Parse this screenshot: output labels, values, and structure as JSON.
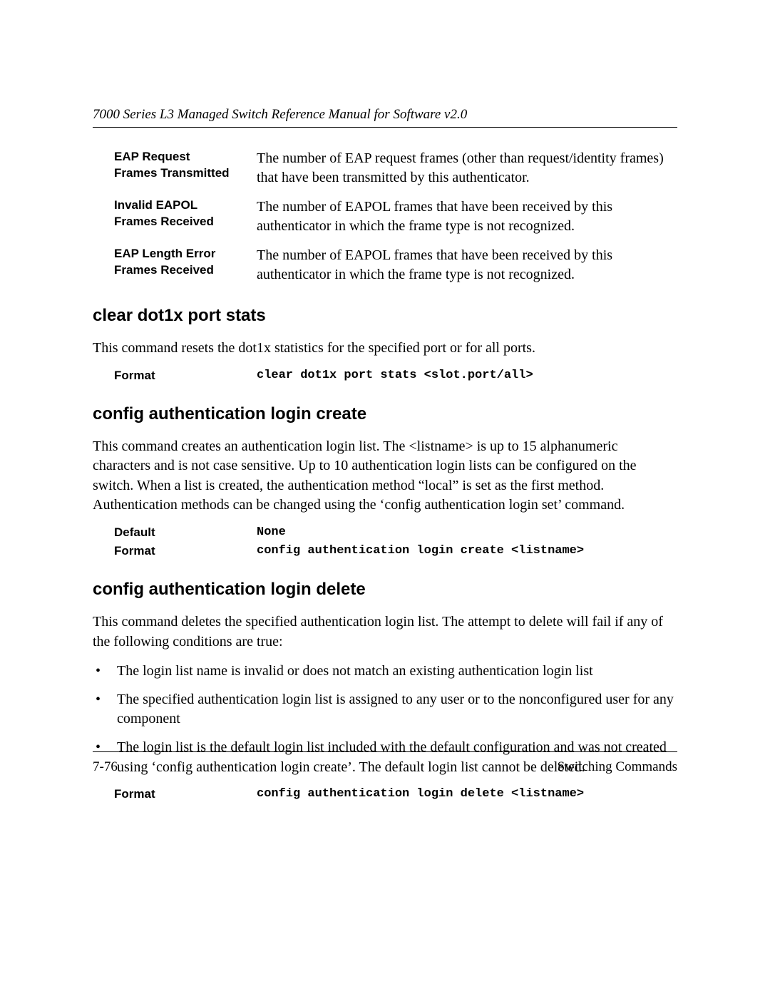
{
  "header": {
    "running_title": "7000 Series L3 Managed Switch Reference Manual for Software v2.0"
  },
  "definitions": [
    {
      "term_line1": "EAP Request",
      "term_line2": "Frames Transmitted",
      "desc": "The number of EAP request frames (other than request/identity frames) that have been transmitted by this authenticator."
    },
    {
      "term_line1": "Invalid EAPOL",
      "term_line2": "Frames Received",
      "desc": "The number of EAPOL frames that have been received by this authenticator in which the frame type is not recognized."
    },
    {
      "term_line1": "EAP Length Error",
      "term_line2": "Frames Received",
      "desc": "The number of EAPOL frames that have been received by this authenticator in which the frame type is not recognized."
    }
  ],
  "sections": {
    "clear_stats": {
      "title": "clear dot1x port stats",
      "body": "This command resets the dot1x statistics for the specified port or for all ports.",
      "format_label": "Format",
      "format_value": "clear dot1x port stats <slot.port/all>"
    },
    "login_create": {
      "title": "config authentication login create",
      "body": "This command creates an authentication login list. The <listname> is up to 15 alphanumeric characters and is not case sensitive. Up to 10 authentication login lists can be configured on the switch. When a list is created, the authentication method “local” is set as the first method. Authentication methods can be changed using the ‘config authentication login set’ command.",
      "default_label": "Default",
      "default_value": "None",
      "format_label": "Format",
      "format_value": "config authentication login create <listname>"
    },
    "login_delete": {
      "title": "config authentication login delete",
      "body": "This command deletes the specified authentication login list. The attempt to delete will fail if any of the following conditions are true:",
      "bullets": [
        "The login list name is invalid or does not match an existing authentication login list",
        "The specified authentication login list is assigned to any user or to the nonconfigured user for any component",
        "The login list is the default login list included with the default configuration and was not created using ‘config authentication login create’. The default login list cannot be deleted."
      ],
      "format_label": "Format",
      "format_value": "config authentication login delete <listname>"
    }
  },
  "footer": {
    "page_number": "7-76",
    "section_label": "Switching Commands"
  }
}
